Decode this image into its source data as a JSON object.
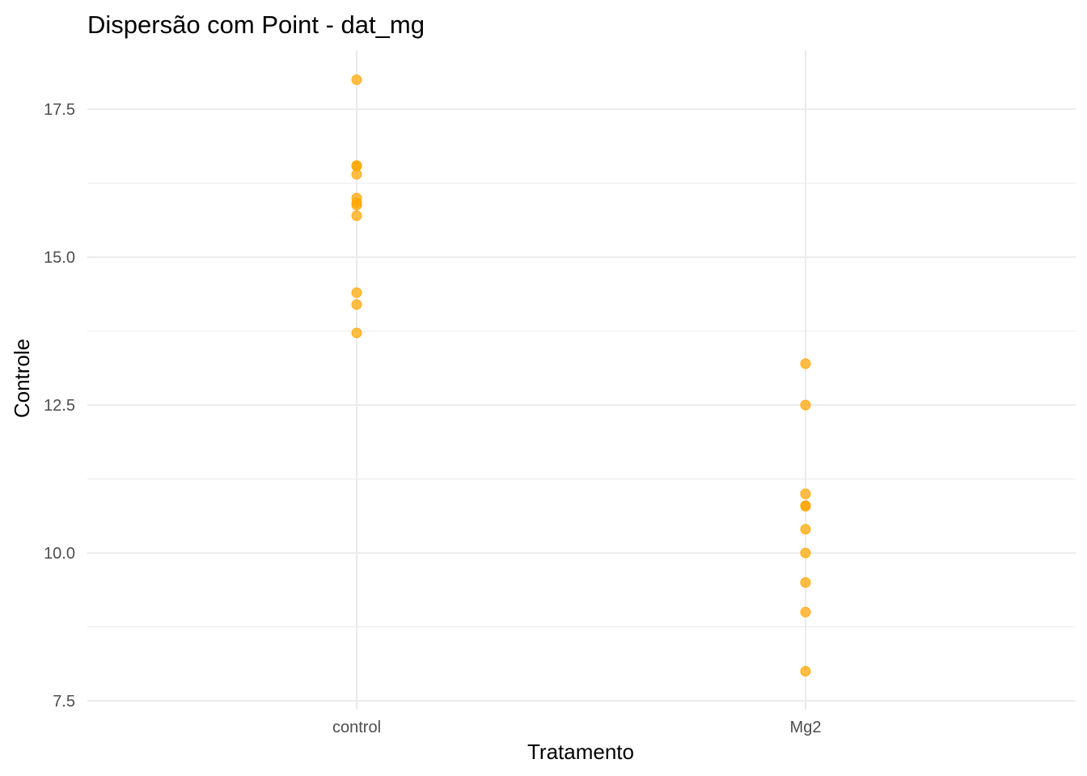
{
  "chart_data": {
    "type": "scatter",
    "title": "Dispersão com Point - dat_mg",
    "xlabel": "Tratamento",
    "ylabel": "Controle",
    "categories": [
      "control",
      "Mg2"
    ],
    "ylim": [
      7.35,
      18.5
    ],
    "y_ticks": [
      7.5,
      10.0,
      12.5,
      15.0,
      17.5
    ],
    "y_tick_labels": [
      "7.5",
      "10.0",
      "12.5",
      "15.0",
      "17.5"
    ],
    "grid": true,
    "point_color": "#FFA500",
    "series": [
      {
        "category": "control",
        "values": [
          18.0,
          16.55,
          16.54,
          16.4,
          16.0,
          15.92,
          15.88,
          15.7,
          14.4,
          14.2,
          13.72
        ]
      },
      {
        "category": "Mg2",
        "values": [
          13.2,
          12.5,
          11.0,
          10.8,
          10.79,
          10.4,
          10.0,
          9.5,
          9.0,
          8.0
        ]
      }
    ]
  }
}
